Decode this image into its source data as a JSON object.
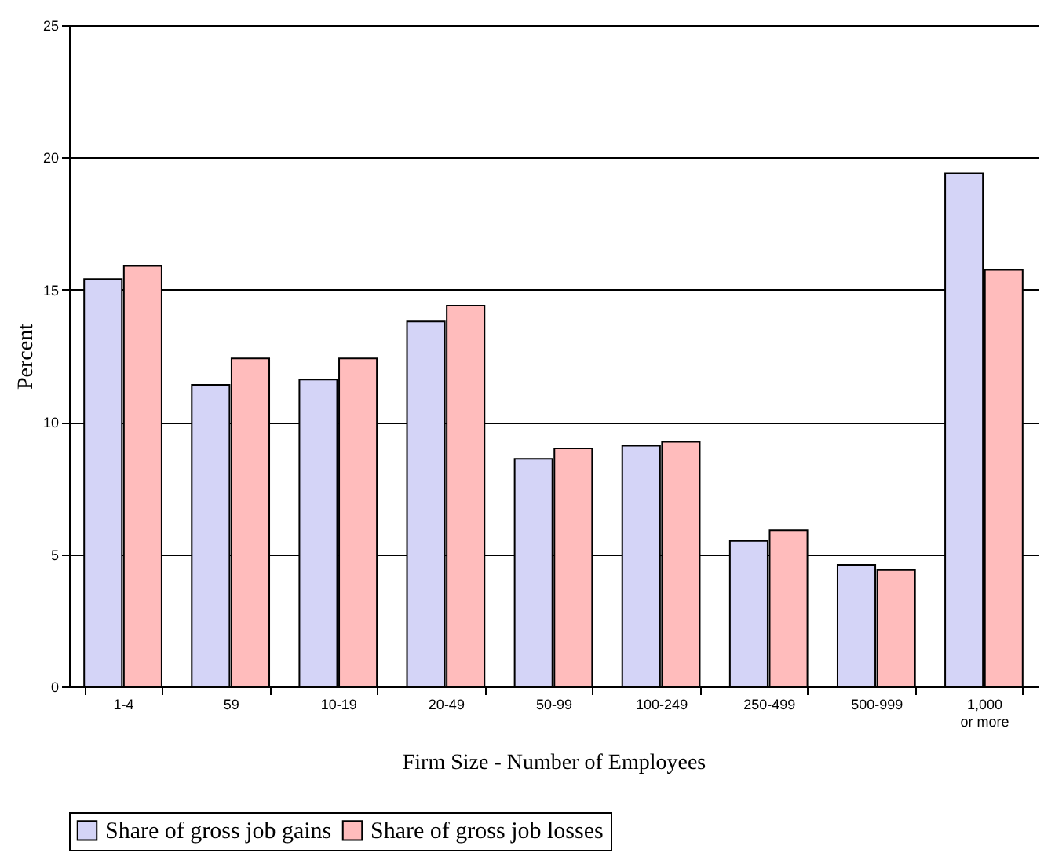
{
  "chart_data": {
    "type": "bar",
    "xlabel": "Firm Size - Number of Employees",
    "ylabel": "Percent",
    "categories": [
      "1-4",
      "59",
      "10-19",
      "20-49",
      "50-99",
      "100-249",
      "250-499",
      "500-999",
      "1,000 or more"
    ],
    "series": [
      {
        "name": "Share of gross job gains",
        "color": "#d4d4f7",
        "values": [
          15.4,
          11.4,
          11.6,
          13.8,
          8.6,
          9.1,
          5.5,
          4.6,
          19.4
        ]
      },
      {
        "name": "Share of gross job losses",
        "color": "#ffbcbc",
        "values": [
          15.9,
          12.4,
          12.4,
          14.4,
          9.0,
          9.25,
          5.9,
          4.4,
          15.75
        ]
      }
    ],
    "ylim": [
      0,
      25
    ],
    "yticks": [
      0,
      5,
      10,
      15,
      20,
      25
    ],
    "grid": "y",
    "legend": "bottom"
  }
}
